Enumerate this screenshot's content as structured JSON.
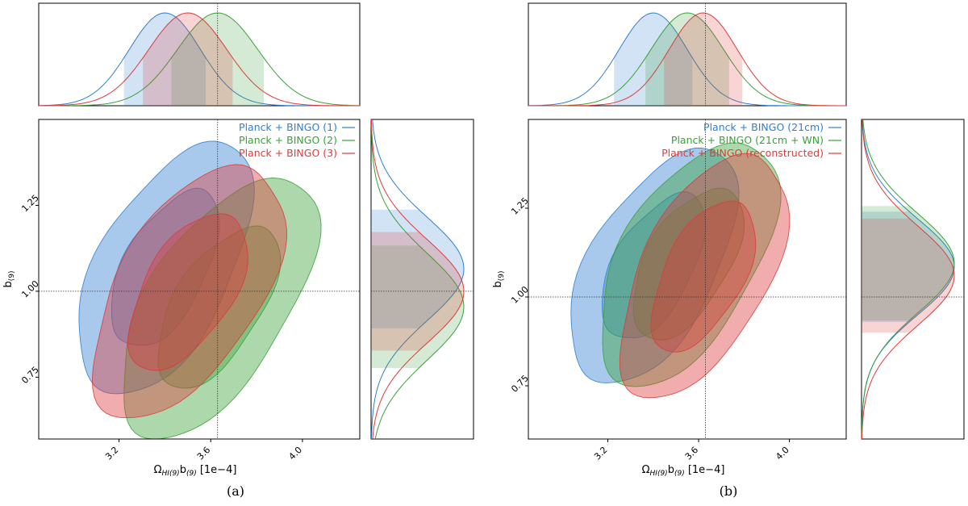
{
  "colors": {
    "blue": "#2f7fd0",
    "green": "#3aa13a",
    "red": "#dd3b3b"
  },
  "chart_data": [
    {
      "type": "contour",
      "caption": "(a)",
      "xlabel_main": "Ω",
      "xlabel_sub1": "HI(9)",
      "xlabel_mid": "b",
      "xlabel_sub2": "(9)",
      "xlabel_unit": " [1e−4]",
      "ylabel_main": "b",
      "ylabel_sub": "(9)",
      "xticks": [
        "3.2",
        "3.6",
        "4.0"
      ],
      "yticks": [
        "0.75",
        "1.00",
        "1.25"
      ],
      "xlim": [
        2.85,
        4.25
      ],
      "ylim": [
        0.57,
        1.5
      ],
      "fiducial": {
        "x": 3.63,
        "y": 1.0
      },
      "series": [
        {
          "name": "Planck + BINGO (1)",
          "color": "blue",
          "mean_x": 3.4,
          "sigma_x": 0.155,
          "mean_y": 1.065,
          "sigma_y": 0.15,
          "rho": 0.55
        },
        {
          "name": "Planck + BINGO (2)",
          "color": "green",
          "mean_x": 3.63,
          "sigma_x": 0.175,
          "mean_y": 0.955,
          "sigma_y": 0.155,
          "rho": 0.6
        },
        {
          "name": "Planck + BINGO (3)",
          "color": "red",
          "mean_x": 3.5,
          "sigma_x": 0.17,
          "mean_y": 1.0,
          "sigma_y": 0.15,
          "rho": 0.55
        }
      ]
    },
    {
      "type": "contour",
      "caption": "(b)",
      "xlabel_main": "Ω",
      "xlabel_sub1": "HI(9)",
      "xlabel_mid": "b",
      "xlabel_sub2": "(9)",
      "xlabel_unit": " [1e−4]",
      "ylabel_main": "b",
      "ylabel_sub": "(9)",
      "xticks": [
        "3.2",
        "3.6",
        "4.0"
      ],
      "yticks": [
        "0.75",
        "1.00",
        "1.25"
      ],
      "xlim": [
        2.85,
        4.25
      ],
      "ylim": [
        0.6,
        1.5
      ],
      "fiducial": {
        "x": 3.63,
        "y": 1.0
      },
      "series": [
        {
          "name": "Planck + BINGO (21cm)",
          "color": "blue",
          "mean_x": 3.4,
          "sigma_x": 0.15,
          "mean_y": 1.085,
          "sigma_y": 0.135,
          "rho": 0.55
        },
        {
          "name": "Planck + BINGO (21cm + WN)",
          "color": "green",
          "mean_x": 3.55,
          "sigma_x": 0.16,
          "mean_y": 1.095,
          "sigma_y": 0.14,
          "rho": 0.55
        },
        {
          "name": "Planck + BINGO (reconstructed)",
          "color": "red",
          "mean_x": 3.62,
          "sigma_x": 0.15,
          "mean_y": 1.06,
          "sigma_y": 0.14,
          "rho": 0.55
        }
      ]
    }
  ]
}
